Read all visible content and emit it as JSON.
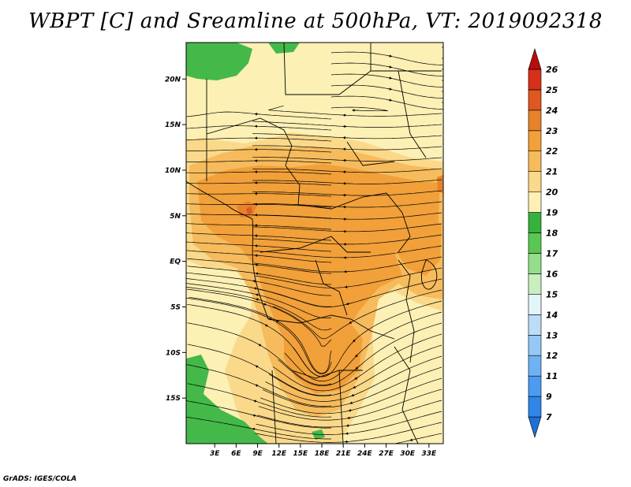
{
  "title": "WBPT [C] and Sreamline at 500hPa, VT: 2019092318",
  "credit": "GrADS: IGES/COLA",
  "map": {
    "lat_range": [
      -20,
      24
    ],
    "lon_range": [
      -1,
      35
    ],
    "lat_ticks": [
      {
        "lat": 20,
        "label": "20N"
      },
      {
        "lat": 15,
        "label": "15N"
      },
      {
        "lat": 10,
        "label": "10N"
      },
      {
        "lat": 5,
        "label": "5N"
      },
      {
        "lat": 0,
        "label": "EQ"
      },
      {
        "lat": -5,
        "label": "5S"
      },
      {
        "lat": -10,
        "label": "10S"
      },
      {
        "lat": -15,
        "label": "15S"
      }
    ],
    "lon_ticks": [
      {
        "lon": 3,
        "label": "3E"
      },
      {
        "lon": 6,
        "label": "6E"
      },
      {
        "lon": 9,
        "label": "9E"
      },
      {
        "lon": 12,
        "label": "12E"
      },
      {
        "lon": 15,
        "label": "15E"
      },
      {
        "lon": 18,
        "label": "18E"
      },
      {
        "lon": 21,
        "label": "21E"
      },
      {
        "lon": 24,
        "label": "24E"
      },
      {
        "lon": 27,
        "label": "27E"
      },
      {
        "lon": 30,
        "label": "30E"
      },
      {
        "lon": 33,
        "label": "33E"
      }
    ]
  },
  "colorbar": {
    "labels": [
      "7",
      "9",
      "11",
      "12",
      "13",
      "14",
      "15",
      "16",
      "17",
      "18",
      "19",
      "20",
      "21",
      "22",
      "23",
      "24",
      "25",
      "26"
    ],
    "colors": [
      "#1e6fd8",
      "#2f86e8",
      "#4b9cf0",
      "#6fb2f4",
      "#96c8f6",
      "#bcdcf8",
      "#e4f4fb",
      "#c9efc0",
      "#93df89",
      "#5ac752",
      "#35b23c",
      "#fcf0b4",
      "#fad98a",
      "#f6bb5c",
      "#f1a03a",
      "#e8822a",
      "#e0571f",
      "#d6301a",
      "#b80d0d"
    ]
  },
  "field_colors": {
    "c18": "#44b94a",
    "c19": "#fcf0b4",
    "c20": "#fad98a",
    "c21": "#f6bb5c",
    "c22": "#f1a03a",
    "c23": "#e8822a",
    "c24": "#e0571f"
  }
}
